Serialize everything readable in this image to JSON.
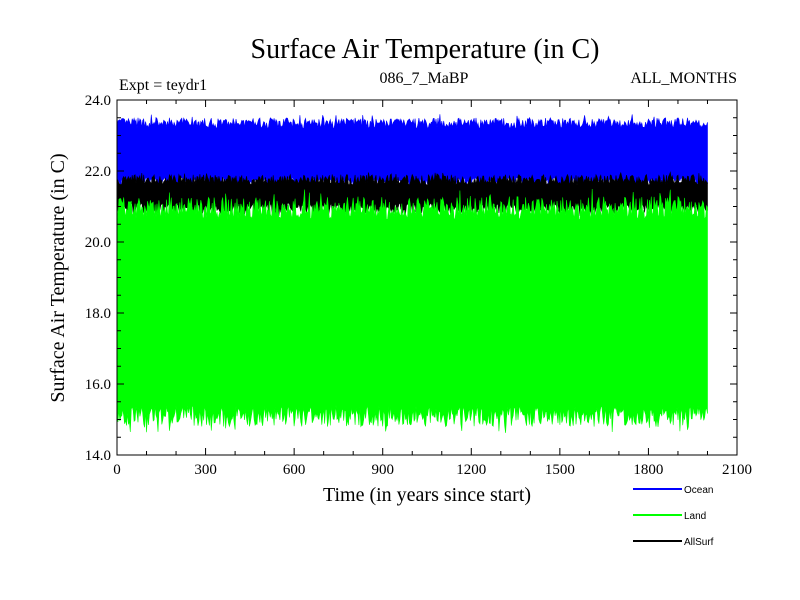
{
  "chart_data": {
    "type": "line",
    "title": "Surface Air Temperature (in C)",
    "experiment_label": "Expt = teydr1",
    "subtitle_center": "086_7_MaBP",
    "subtitle_right": "ALL_MONTHS",
    "xlabel": "Time (in years since start)",
    "ylabel": "Surface Air Temperature (in C)",
    "xlim": [
      0,
      2100
    ],
    "ylim": [
      14.0,
      24.0
    ],
    "x_ticks": [
      0,
      300,
      600,
      900,
      1200,
      1500,
      1800,
      2100
    ],
    "x_tick_labels": [
      "0",
      "300",
      "600",
      "900",
      "1200",
      "1500",
      "1800",
      "2100"
    ],
    "y_ticks": [
      14,
      16,
      18,
      20,
      22,
      24
    ],
    "y_tick_labels": [
      "14.0",
      "16.0",
      "18.0",
      "20.0",
      "22.0",
      "24.0"
    ],
    "grid": false,
    "legend_position": "bottom-right, outside plot",
    "x_range": [
      0,
      2000
    ],
    "series": [
      {
        "name": "Ocean",
        "color": "#0000ff",
        "min": 21.5,
        "max": 23.6,
        "typical_low": 21.7,
        "typical_high": 23.35
      },
      {
        "name": "AllSurf",
        "color": "#000000",
        "min": 20.7,
        "max": 22.0,
        "typical_low": 20.95,
        "typical_high": 21.75
      },
      {
        "name": "Land",
        "color": "#00ff00",
        "min": 14.6,
        "max": 21.5,
        "typical_low": 15.1,
        "typical_high": 20.95
      }
    ],
    "legend": [
      {
        "name": "Ocean",
        "color": "#0000ff"
      },
      {
        "name": "Land",
        "color": "#00ff00"
      },
      {
        "name": "AllSurf",
        "color": "#000000"
      }
    ]
  }
}
